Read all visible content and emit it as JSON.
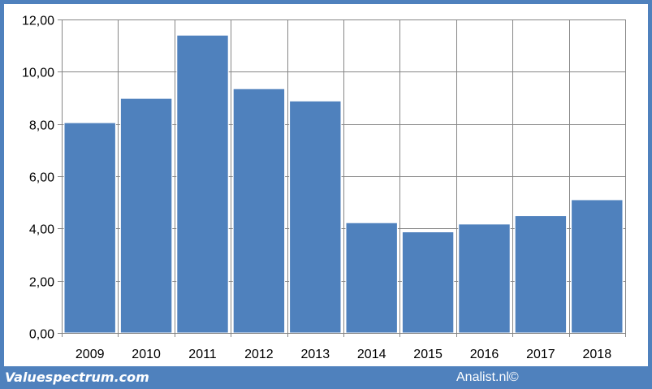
{
  "chart_data": {
    "type": "bar",
    "title": "",
    "xlabel": "",
    "ylabel": "",
    "categories": [
      "2009",
      "2010",
      "2011",
      "2012",
      "2013",
      "2014",
      "2015",
      "2016",
      "2017",
      "2018"
    ],
    "values": [
      8.05,
      8.98,
      11.4,
      9.35,
      8.88,
      4.22,
      3.87,
      4.17,
      4.49,
      5.1
    ],
    "ylim": [
      0,
      12
    ],
    "yticks": [
      "0,00",
      "2,00",
      "4,00",
      "6,00",
      "8,00",
      "10,00",
      "12,00"
    ],
    "ytick_values": [
      0,
      2,
      4,
      6,
      8,
      10,
      12
    ],
    "grid": "both",
    "legend": "none",
    "bar_color": "#4f81bd"
  },
  "footer": {
    "left": "Valuespectrum.com",
    "right": "Analist.nl©"
  },
  "colors": {
    "frame": "#4f81bd",
    "bar": "#4f81bd",
    "grid": "#868686"
  }
}
